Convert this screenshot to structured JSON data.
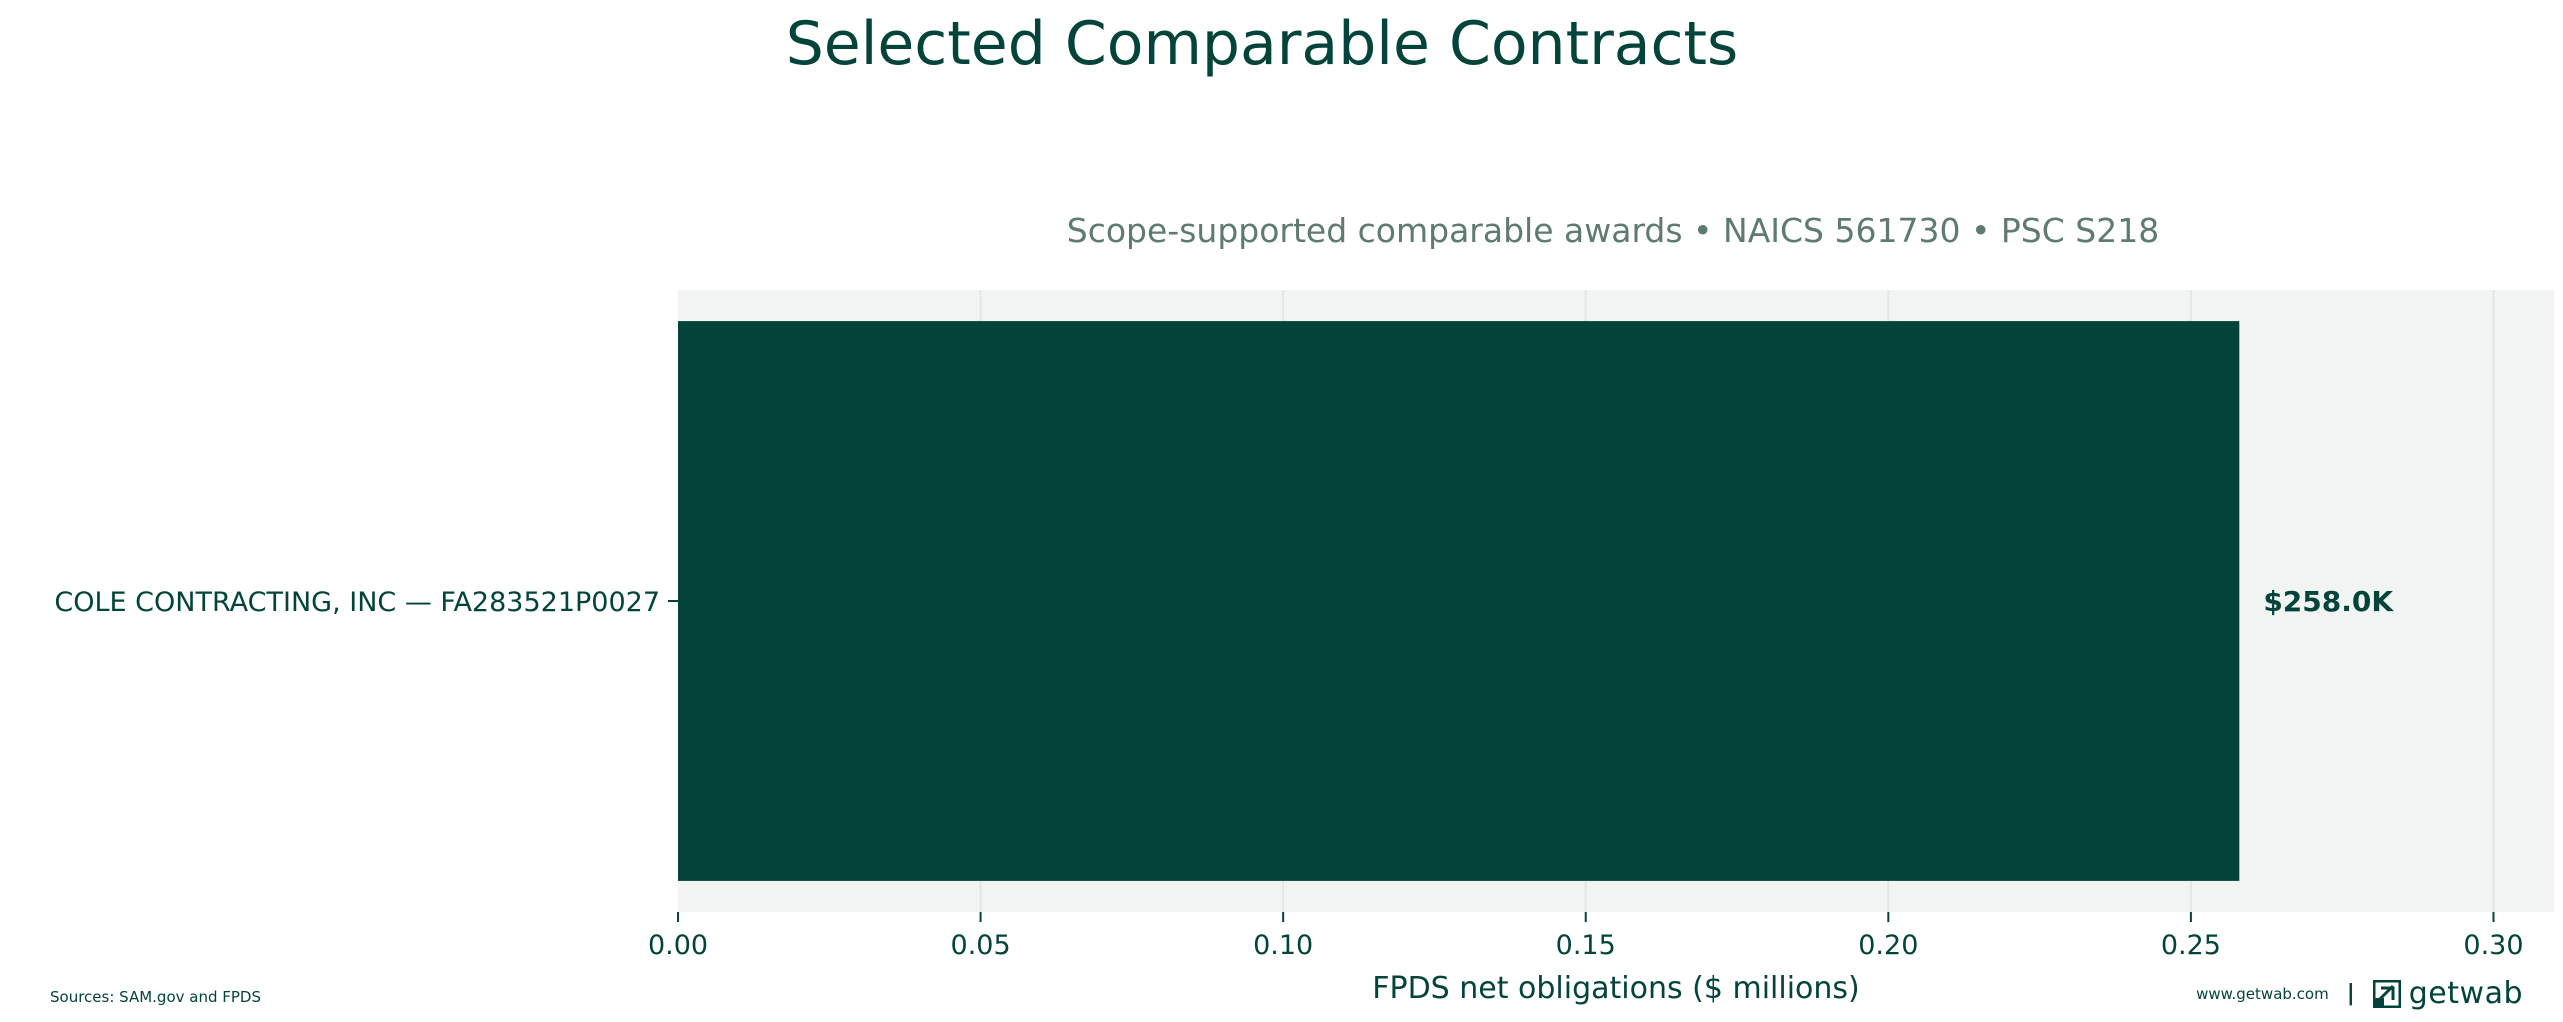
{
  "chart_data": {
    "type": "bar",
    "orientation": "horizontal",
    "title": "Selected Comparable Contracts",
    "subtitle": "Scope-supported comparable awards • NAICS 561730 • PSC S218",
    "xlabel": "FPDS net obligations ($ millions)",
    "ylabel": "",
    "categories": [
      "COLE CONTRACTING, INC — FA283521P0027"
    ],
    "values": [
      0.258
    ],
    "data_labels": [
      "$258.0K"
    ],
    "xlim": [
      0,
      0.31
    ],
    "xticks": [
      0.0,
      0.05,
      0.1,
      0.15,
      0.2,
      0.25,
      0.3
    ],
    "xtick_labels": [
      "0.00",
      "0.05",
      "0.10",
      "0.15",
      "0.20",
      "0.25",
      "0.30"
    ],
    "grid": "vertical",
    "colors": {
      "bar": "#03443a",
      "plot_bg": "#f2f4f3",
      "grid": "#e2e6e4",
      "title": "#03443a",
      "subtitle": "#5f7a73",
      "text": "#03443a"
    }
  },
  "footer": {
    "source": "Sources: SAM.gov and FPDS",
    "url": "www.getwab.com",
    "separator": "|",
    "brand": "getwab",
    "brand_icon": "getwab-logo-icon"
  }
}
